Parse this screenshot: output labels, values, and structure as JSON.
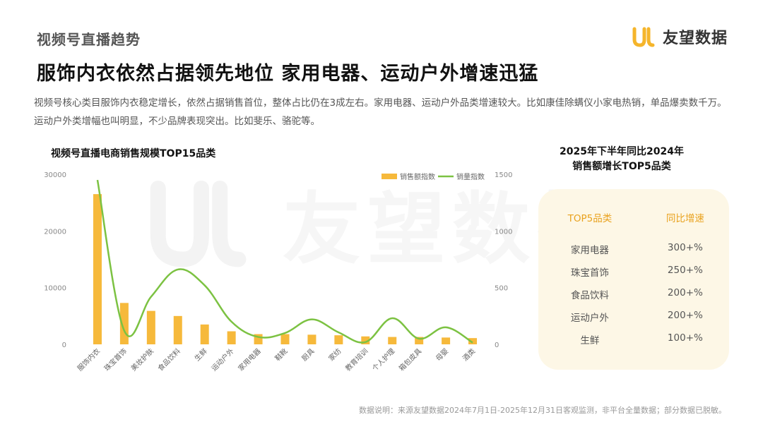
{
  "header": {
    "section_label": "视频号直播趋势",
    "brand_name": "友望数据",
    "headline": "服饰内衣依然占据领先地位 家用电器、运动户外增速迅猛",
    "description": "视频号核心类目服饰内衣稳定增长，依然占据销售首位，整体占比仍在3成左右。家用电器、运动户外品类增速较大。比如康佳除螨仪小家电热销，单品爆卖数千万。运动户外类增幅也叫明显，不少品牌表现突出。比如斐乐、骆驼等。"
  },
  "watermark_text": "友望数据",
  "chart_data": {
    "type": "bar",
    "title": "视频号直播电商销售规模TOP15品类",
    "categories": [
      "服饰内衣",
      "珠宝首饰",
      "美妆护肤",
      "食品饮料",
      "生鲜",
      "运动户外",
      "家用电器",
      "鞋靴",
      "厨具",
      "家纺",
      "教育培训",
      "个人护理",
      "箱包皮具",
      "母婴",
      "酒类"
    ],
    "series": [
      {
        "name": "销售额指数",
        "type": "bar",
        "axis": "left",
        "color": "#f6b93b",
        "values": [
          26500,
          7300,
          5900,
          5000,
          3500,
          2300,
          1800,
          1800,
          1700,
          1600,
          1400,
          1300,
          1300,
          1200,
          1100
        ]
      },
      {
        "name": "销量指数",
        "type": "line",
        "axis": "right",
        "color": "#7cc242",
        "values": [
          1450,
          120,
          420,
          660,
          520,
          200,
          65,
          100,
          220,
          105,
          20,
          230,
          50,
          150,
          15
        ]
      }
    ],
    "y_left": {
      "min": 0,
      "max": 30000,
      "ticks": [
        0,
        10000,
        20000,
        30000
      ]
    },
    "y_right": {
      "min": 0,
      "max": 1500,
      "ticks": [
        0,
        500,
        1000,
        1500
      ]
    },
    "legend_position": "top-right",
    "grid": false
  },
  "right_panel": {
    "title_line1": "2025年下半年同比2024年",
    "title_line2": "销售额增长TOP5品类",
    "col1_header": "TOP5品类",
    "col2_header": "同比增速",
    "rows": [
      {
        "category": "家用电器",
        "growth": "300+%"
      },
      {
        "category": "珠宝首饰",
        "growth": "250+%"
      },
      {
        "category": "食品饮料",
        "growth": "200+%"
      },
      {
        "category": "运动户外",
        "growth": "200+%"
      },
      {
        "category": "生鲜",
        "growth": "100+%"
      }
    ]
  },
  "footnote": "数据说明：来源友望数据2024年7月1日-2025年12月31日客观监测，非平台全量数据；部分数据已脱敏。",
  "colors": {
    "accent_orange": "#f6b93b",
    "line_green": "#7cc242",
    "card_bg": "#fdf7e6",
    "header_orange": "#e9a21e"
  }
}
